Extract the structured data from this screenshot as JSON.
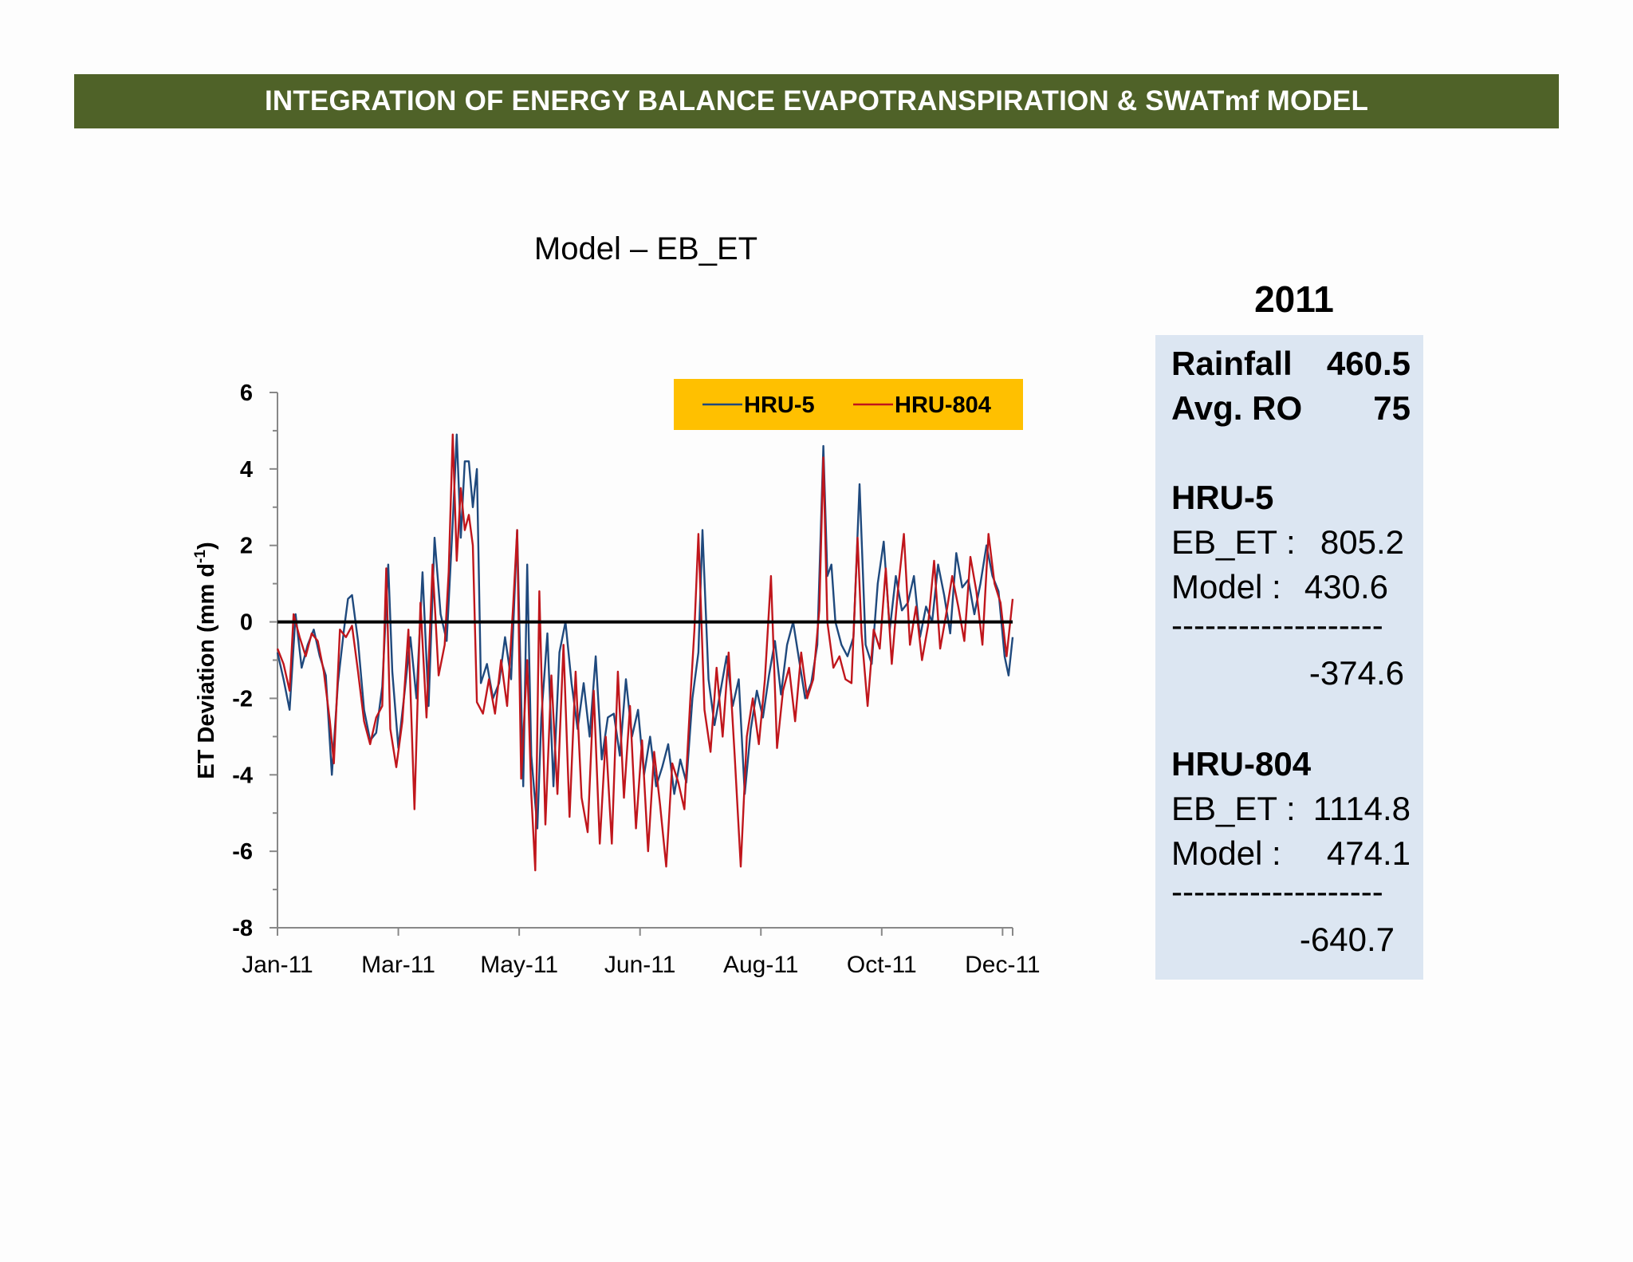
{
  "banner": {
    "title": "INTEGRATION OF ENERGY BALANCE EVAPOTRANSPIRATION & SWATmf MODEL"
  },
  "chart_title": "Model – EB_ET",
  "chart_data": {
    "type": "line",
    "title": "Model – EB_ET",
    "xlabel": "",
    "ylabel": "ET Deviation (mm d-1)",
    "ylim": [
      -8,
      6
    ],
    "yticks": [
      "6",
      "4",
      "2",
      "0",
      "-2",
      "-4",
      "-6",
      "-8"
    ],
    "xlim_day": [
      1,
      366
    ],
    "x_ticklabels": [
      {
        "label": "Jan-11",
        "day": 1
      },
      {
        "label": "Mar-11",
        "day": 61
      },
      {
        "label": "May-11",
        "day": 121
      },
      {
        "label": "Jun-11",
        "day": 181
      },
      {
        "label": "Aug-11",
        "day": 241
      },
      {
        "label": "Oct-11",
        "day": 301
      },
      {
        "label": "Dec-11",
        "day": 361
      }
    ],
    "reference_line": 0,
    "legend": {
      "placement": "top-right",
      "background": "#ffc000"
    },
    "series": [
      {
        "name": "HRU-5",
        "color": "#1f497d",
        "points": [
          [
            1,
            -0.8
          ],
          [
            4,
            -1.5
          ],
          [
            7,
            -2.3
          ],
          [
            10,
            0.2
          ],
          [
            13,
            -1.2
          ],
          [
            16,
            -0.6
          ],
          [
            19,
            -0.2
          ],
          [
            22,
            -0.9
          ],
          [
            25,
            -1.4
          ],
          [
            28,
            -4.0
          ],
          [
            31,
            -1.6
          ],
          [
            34,
            -0.2
          ],
          [
            36,
            0.6
          ],
          [
            38,
            0.7
          ],
          [
            41,
            -0.5
          ],
          [
            44,
            -2.3
          ],
          [
            47,
            -3.1
          ],
          [
            50,
            -2.9
          ],
          [
            53,
            -1.7
          ],
          [
            56,
            1.5
          ],
          [
            58,
            -1.3
          ],
          [
            61,
            -3.3
          ],
          [
            64,
            -1.9
          ],
          [
            67,
            -0.4
          ],
          [
            70,
            -2.0
          ],
          [
            73,
            1.3
          ],
          [
            76,
            -2.2
          ],
          [
            79,
            2.2
          ],
          [
            82,
            0.2
          ],
          [
            85,
            -0.5
          ],
          [
            88,
            2.6
          ],
          [
            90,
            4.9
          ],
          [
            92,
            2.2
          ],
          [
            94,
            4.2
          ],
          [
            96,
            4.2
          ],
          [
            98,
            3.0
          ],
          [
            100,
            4.0
          ],
          [
            102,
            -1.6
          ],
          [
            105,
            -1.1
          ],
          [
            108,
            -2.0
          ],
          [
            111,
            -1.6
          ],
          [
            114,
            -0.4
          ],
          [
            117,
            -1.5
          ],
          [
            120,
            2.4
          ],
          [
            123,
            -4.3
          ],
          [
            125,
            1.5
          ],
          [
            127,
            -3.5
          ],
          [
            130,
            -5.4
          ],
          [
            132,
            -2.5
          ],
          [
            135,
            -0.3
          ],
          [
            138,
            -4.3
          ],
          [
            141,
            -0.8
          ],
          [
            144,
            0.0
          ],
          [
            147,
            -1.6
          ],
          [
            150,
            -2.8
          ],
          [
            153,
            -1.6
          ],
          [
            156,
            -3.0
          ],
          [
            159,
            -0.9
          ],
          [
            162,
            -3.6
          ],
          [
            165,
            -2.5
          ],
          [
            168,
            -2.4
          ],
          [
            171,
            -3.5
          ],
          [
            174,
            -1.5
          ],
          [
            177,
            -3.0
          ],
          [
            180,
            -2.3
          ],
          [
            183,
            -4.0
          ],
          [
            186,
            -3.0
          ],
          [
            189,
            -4.3
          ],
          [
            192,
            -3.8
          ],
          [
            195,
            -3.2
          ],
          [
            198,
            -4.5
          ],
          [
            201,
            -3.6
          ],
          [
            204,
            -4.2
          ],
          [
            207,
            -2.0
          ],
          [
            210,
            -0.8
          ],
          [
            212,
            2.4
          ],
          [
            215,
            -1.5
          ],
          [
            218,
            -2.7
          ],
          [
            221,
            -1.8
          ],
          [
            224,
            -0.9
          ],
          [
            227,
            -2.2
          ],
          [
            230,
            -1.5
          ],
          [
            233,
            -4.5
          ],
          [
            236,
            -2.8
          ],
          [
            239,
            -1.8
          ],
          [
            242,
            -2.5
          ],
          [
            245,
            -1.4
          ],
          [
            248,
            -0.5
          ],
          [
            251,
            -1.9
          ],
          [
            254,
            -0.6
          ],
          [
            257,
            0.0
          ],
          [
            260,
            -1.0
          ],
          [
            263,
            -2.0
          ],
          [
            266,
            -1.6
          ],
          [
            269,
            -0.6
          ],
          [
            272,
            4.6
          ],
          [
            274,
            1.2
          ],
          [
            276,
            1.5
          ],
          [
            278,
            0.0
          ],
          [
            281,
            -0.6
          ],
          [
            284,
            -0.9
          ],
          [
            287,
            -0.4
          ],
          [
            290,
            3.6
          ],
          [
            293,
            -0.6
          ],
          [
            296,
            -1.1
          ],
          [
            299,
            1.0
          ],
          [
            302,
            2.1
          ],
          [
            305,
            -0.2
          ],
          [
            308,
            1.2
          ],
          [
            311,
            0.3
          ],
          [
            314,
            0.5
          ],
          [
            317,
            1.2
          ],
          [
            320,
            -0.4
          ],
          [
            323,
            0.4
          ],
          [
            326,
            0.0
          ],
          [
            329,
            1.5
          ],
          [
            332,
            0.7
          ],
          [
            335,
            -0.3
          ],
          [
            338,
            1.8
          ],
          [
            341,
            0.9
          ],
          [
            344,
            1.1
          ],
          [
            347,
            0.2
          ],
          [
            350,
            1.0
          ],
          [
            353,
            2.0
          ],
          [
            356,
            1.2
          ],
          [
            359,
            0.8
          ],
          [
            362,
            -0.9
          ],
          [
            364,
            -1.4
          ],
          [
            366,
            -0.4
          ]
        ]
      },
      {
        "name": "HRU-804",
        "color": "#c0161c",
        "points": [
          [
            1,
            -0.7
          ],
          [
            4,
            -1.1
          ],
          [
            7,
            -1.8
          ],
          [
            9,
            0.2
          ],
          [
            12,
            -0.4
          ],
          [
            15,
            -0.9
          ],
          [
            18,
            -0.3
          ],
          [
            21,
            -0.5
          ],
          [
            24,
            -1.3
          ],
          [
            27,
            -2.6
          ],
          [
            29,
            -3.7
          ],
          [
            32,
            -0.2
          ],
          [
            35,
            -0.4
          ],
          [
            38,
            -0.1
          ],
          [
            41,
            -1.3
          ],
          [
            44,
            -2.6
          ],
          [
            47,
            -3.2
          ],
          [
            50,
            -2.5
          ],
          [
            53,
            -2.2
          ],
          [
            55,
            1.4
          ],
          [
            57,
            -2.8
          ],
          [
            60,
            -3.8
          ],
          [
            63,
            -2.6
          ],
          [
            66,
            -0.2
          ],
          [
            69,
            -4.9
          ],
          [
            72,
            0.5
          ],
          [
            75,
            -2.5
          ],
          [
            78,
            1.5
          ],
          [
            81,
            -1.4
          ],
          [
            84,
            -0.6
          ],
          [
            86,
            1.3
          ],
          [
            88,
            4.9
          ],
          [
            90,
            1.6
          ],
          [
            92,
            3.5
          ],
          [
            94,
            2.4
          ],
          [
            96,
            2.8
          ],
          [
            98,
            2.0
          ],
          [
            100,
            -2.1
          ],
          [
            103,
            -2.4
          ],
          [
            106,
            -1.5
          ],
          [
            109,
            -2.4
          ],
          [
            112,
            -1.0
          ],
          [
            115,
            -2.2
          ],
          [
            118,
            0.4
          ],
          [
            120,
            2.4
          ],
          [
            122,
            -4.1
          ],
          [
            125,
            -1.0
          ],
          [
            127,
            -4.5
          ],
          [
            129,
            -6.5
          ],
          [
            131,
            0.8
          ],
          [
            134,
            -5.3
          ],
          [
            137,
            -1.4
          ],
          [
            140,
            -4.5
          ],
          [
            143,
            -0.6
          ],
          [
            146,
            -5.1
          ],
          [
            149,
            -1.3
          ],
          [
            152,
            -4.6
          ],
          [
            155,
            -5.5
          ],
          [
            158,
            -1.8
          ],
          [
            161,
            -5.8
          ],
          [
            164,
            -3.0
          ],
          [
            167,
            -5.8
          ],
          [
            170,
            -1.3
          ],
          [
            173,
            -4.6
          ],
          [
            176,
            -2.2
          ],
          [
            179,
            -5.4
          ],
          [
            182,
            -3.1
          ],
          [
            185,
            -6.0
          ],
          [
            188,
            -3.4
          ],
          [
            191,
            -4.8
          ],
          [
            194,
            -6.4
          ],
          [
            197,
            -3.7
          ],
          [
            200,
            -4.2
          ],
          [
            203,
            -4.9
          ],
          [
            206,
            -2.0
          ],
          [
            208,
            -0.2
          ],
          [
            210,
            2.3
          ],
          [
            213,
            -2.3
          ],
          [
            216,
            -3.4
          ],
          [
            219,
            -1.2
          ],
          [
            222,
            -3.0
          ],
          [
            225,
            -0.8
          ],
          [
            228,
            -3.5
          ],
          [
            231,
            -6.4
          ],
          [
            234,
            -3.0
          ],
          [
            237,
            -2.0
          ],
          [
            240,
            -3.2
          ],
          [
            243,
            -1.5
          ],
          [
            246,
            1.2
          ],
          [
            249,
            -3.3
          ],
          [
            252,
            -1.8
          ],
          [
            255,
            -1.2
          ],
          [
            258,
            -2.6
          ],
          [
            261,
            -0.8
          ],
          [
            264,
            -2.0
          ],
          [
            267,
            -1.5
          ],
          [
            270,
            0.3
          ],
          [
            272,
            4.3
          ],
          [
            274,
            0.0
          ],
          [
            277,
            -1.2
          ],
          [
            280,
            -0.9
          ],
          [
            283,
            -1.5
          ],
          [
            286,
            -1.6
          ],
          [
            289,
            2.2
          ],
          [
            291,
            -0.3
          ],
          [
            294,
            -2.2
          ],
          [
            297,
            -0.2
          ],
          [
            300,
            -0.7
          ],
          [
            303,
            1.4
          ],
          [
            306,
            -1.1
          ],
          [
            309,
            0.8
          ],
          [
            312,
            2.3
          ],
          [
            315,
            -0.6
          ],
          [
            318,
            0.4
          ],
          [
            321,
            -1.0
          ],
          [
            324,
            -0.1
          ],
          [
            327,
            1.6
          ],
          [
            330,
            -0.7
          ],
          [
            333,
            0.2
          ],
          [
            336,
            1.2
          ],
          [
            339,
            0.4
          ],
          [
            342,
            -0.5
          ],
          [
            345,
            1.7
          ],
          [
            348,
            0.8
          ],
          [
            351,
            -0.6
          ],
          [
            354,
            2.3
          ],
          [
            357,
            1.0
          ],
          [
            360,
            0.5
          ],
          [
            363,
            -0.9
          ],
          [
            366,
            0.6
          ]
        ]
      }
    ]
  },
  "summary": {
    "year": "2011",
    "rainfall_label": "Rainfall",
    "rainfall_value": "460.5",
    "ro_label": "Avg. RO",
    "ro_value": "75",
    "hru5_heading": "HRU-5",
    "hru5_ebet_label": "EB_ET :",
    "hru5_ebet_value": "805.2",
    "hru5_model_label": "Model :",
    "hru5_model_value": "430.6",
    "separator": "-------------------",
    "hru5_diff": "-374.6",
    "hru804_heading": "HRU-804",
    "hru804_ebet_label": "EB_ET :",
    "hru804_ebet_value": "1114.8",
    "hru804_model_label": "Model :",
    "hru804_model_value": "474.1",
    "hru804_diff": "-640.7"
  }
}
